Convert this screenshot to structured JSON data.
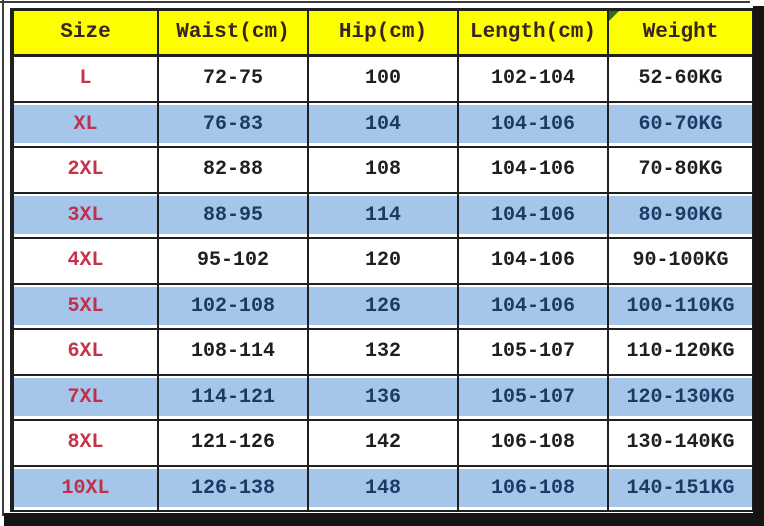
{
  "table": {
    "headers": [
      "Size",
      "Waist(cm)",
      "Hip(cm)",
      "Length(cm)",
      "Weight"
    ],
    "rows": [
      {
        "size": "L",
        "waist": "72-75",
        "hip": "100",
        "length": "102-104",
        "weight": "52-60KG"
      },
      {
        "size": "XL",
        "waist": "76-83",
        "hip": "104",
        "length": "104-106",
        "weight": "60-70KG"
      },
      {
        "size": "2XL",
        "waist": "82-88",
        "hip": "108",
        "length": "104-106",
        "weight": "70-80KG"
      },
      {
        "size": "3XL",
        "waist": "88-95",
        "hip": "114",
        "length": "104-106",
        "weight": "80-90KG"
      },
      {
        "size": "4XL",
        "waist": "95-102",
        "hip": "120",
        "length": "104-106",
        "weight": "90-100KG"
      },
      {
        "size": "5XL",
        "waist": "102-108",
        "hip": "126",
        "length": "104-106",
        "weight": "100-110KG"
      },
      {
        "size": "6XL",
        "waist": "108-114",
        "hip": "132",
        "length": "105-107",
        "weight": "110-120KG"
      },
      {
        "size": "7XL",
        "waist": "114-121",
        "hip": "136",
        "length": "105-107",
        "weight": "120-130KG"
      },
      {
        "size": "8XL",
        "waist": "121-126",
        "hip": "142",
        "length": "106-108",
        "weight": "130-140KG"
      },
      {
        "size": "10XL",
        "waist": "126-138",
        "hip": "148",
        "length": "106-108",
        "weight": "140-151KG"
      }
    ]
  },
  "colors": {
    "header_bg": "#fdfe00",
    "header_text": "#3a2420",
    "size_text": "#c5334a",
    "row_blue_bg": "#a5c6ea",
    "blue_row_text": "#1d3a63",
    "white_row_text": "#1f1f1f",
    "border": "#202020",
    "corner_marker_green": "#2f6b25"
  },
  "chart_data": {
    "type": "table",
    "title": "",
    "columns": [
      "Size",
      "Waist(cm)",
      "Hip(cm)",
      "Length(cm)",
      "Weight"
    ],
    "rows": [
      [
        "L",
        "72-75",
        "100",
        "102-104",
        "52-60KG"
      ],
      [
        "XL",
        "76-83",
        "104",
        "104-106",
        "60-70KG"
      ],
      [
        "2XL",
        "82-88",
        "108",
        "104-106",
        "70-80KG"
      ],
      [
        "3XL",
        "88-95",
        "114",
        "104-106",
        "80-90KG"
      ],
      [
        "4XL",
        "95-102",
        "120",
        "104-106",
        "90-100KG"
      ],
      [
        "5XL",
        "102-108",
        "126",
        "104-106",
        "100-110KG"
      ],
      [
        "6XL",
        "108-114",
        "132",
        "105-107",
        "110-120KG"
      ],
      [
        "7XL",
        "114-121",
        "136",
        "105-107",
        "120-130KG"
      ],
      [
        "8XL",
        "121-126",
        "142",
        "106-108",
        "130-140KG"
      ],
      [
        "10XL",
        "126-138",
        "148",
        "106-108",
        "140-151KG"
      ]
    ]
  }
}
